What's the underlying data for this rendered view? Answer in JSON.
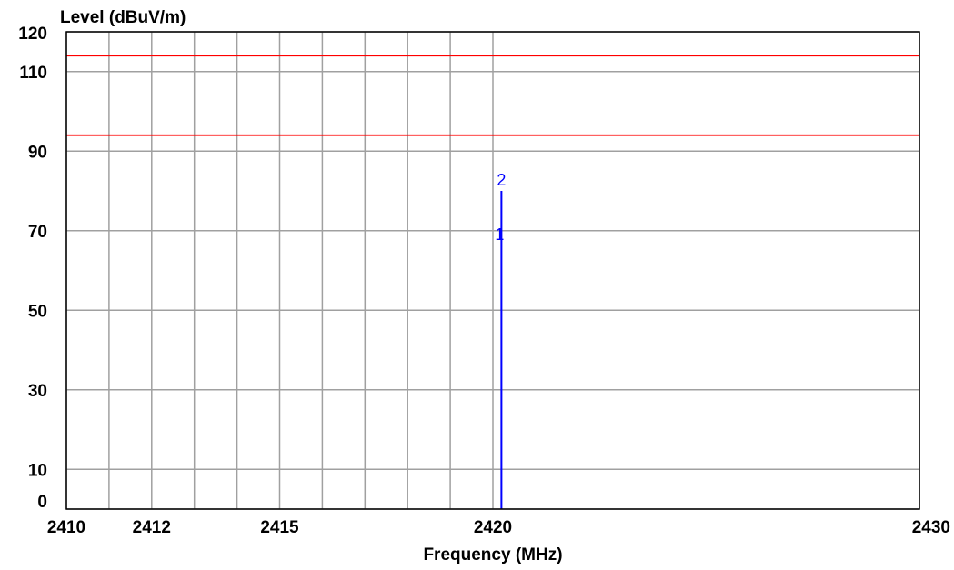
{
  "chart_data": {
    "type": "line",
    "xlabel": "Frequency (MHz)",
    "ylabel": "Level (dBuV/m)",
    "xlim": [
      2410,
      2430
    ],
    "ylim": [
      0,
      120
    ],
    "x_ticks": [
      2410,
      2412,
      2415,
      2420,
      2430
    ],
    "y_ticks": [
      0,
      10,
      30,
      50,
      70,
      90,
      110,
      120
    ],
    "x_grid": [
      2410,
      2411,
      2412,
      2413,
      2414,
      2415,
      2416,
      2417,
      2418,
      2419,
      2420,
      2430
    ],
    "y_grid": [
      0,
      10,
      30,
      50,
      70,
      90,
      110,
      120
    ],
    "grid": true,
    "limit_lines": [
      {
        "y": 114,
        "color": "#ff0000"
      },
      {
        "y": 94,
        "color": "#ff0000"
      }
    ],
    "series": [
      {
        "color": "#0000ff",
        "points": [
          [
            2420.2,
            0
          ],
          [
            2420.2,
            80
          ]
        ]
      }
    ],
    "markers": [
      {
        "label": "1",
        "x": 2420.2,
        "y": 69
      },
      {
        "label": "2",
        "x": 2420.2,
        "y": 80
      }
    ]
  },
  "colors": {
    "grid": "#a0a0a0",
    "frame": "#000000",
    "limit": "#ff0000",
    "trace": "#0000ff",
    "background": "#ffffff"
  }
}
